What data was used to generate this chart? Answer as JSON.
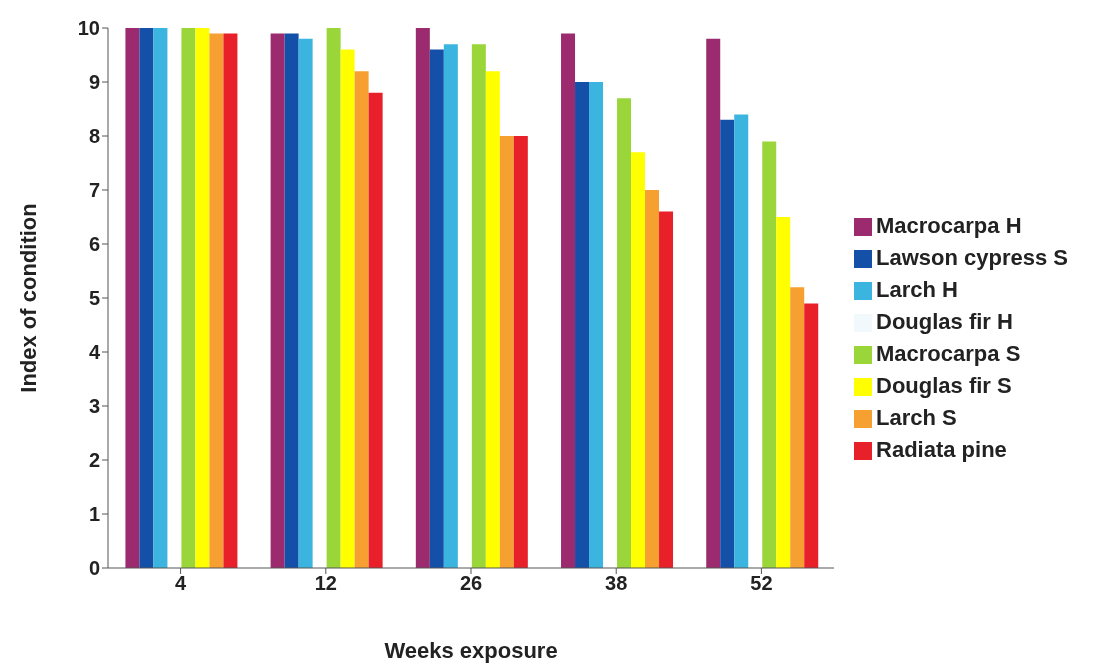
{
  "chart_data": {
    "type": "bar",
    "xlabel": "Weeks exposure",
    "ylabel": "Index of condition",
    "categories": [
      "4",
      "12",
      "26",
      "38",
      "52"
    ],
    "series": [
      {
        "name": "Macrocarpa H",
        "color": "#9b2a6e",
        "values": [
          10,
          9.9,
          10,
          9.9,
          9.8
        ]
      },
      {
        "name": "Lawson cypress S",
        "color": "#1450a8",
        "values": [
          10,
          9.9,
          9.6,
          9.0,
          8.3
        ]
      },
      {
        "name": "Larch H",
        "color": "#3cb4e0",
        "values": [
          10,
          9.8,
          9.7,
          9.0,
          8.4
        ]
      },
      {
        "name": "Douglas fir H",
        "color": "#f2f9fc",
        "values": [
          null,
          null,
          null,
          null,
          null
        ]
      },
      {
        "name": "Macrocarpa S",
        "color": "#9ad63a",
        "values": [
          10,
          10,
          9.7,
          8.7,
          7.9
        ]
      },
      {
        "name": "Douglas fir S",
        "color": "#ffff00",
        "values": [
          10,
          9.6,
          9.2,
          7.7,
          6.5
        ]
      },
      {
        "name": "Larch S",
        "color": "#f5a030",
        "values": [
          9.9,
          9.2,
          8.0,
          7.0,
          5.2
        ]
      },
      {
        "name": "Radiata pine",
        "color": "#e8202a",
        "values": [
          9.9,
          8.8,
          8.0,
          6.6,
          4.9
        ]
      }
    ],
    "ylim": [
      0,
      10
    ],
    "yticks": [
      0,
      1,
      2,
      3,
      4,
      5,
      6,
      7,
      8,
      9,
      10
    ],
    "grid": false,
    "legend": "right"
  }
}
